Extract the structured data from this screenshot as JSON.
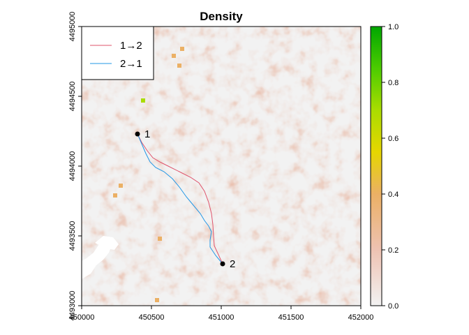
{
  "chart_data": {
    "type": "heatmap",
    "title": "Density",
    "xlabel": "",
    "ylabel": "",
    "xlim": [
      450000,
      452000
    ],
    "ylim": [
      4493000,
      4495000
    ],
    "x_ticks": [
      "450000",
      "450500",
      "451000",
      "451500",
      "452000"
    ],
    "x_tick_values": [
      450000,
      450500,
      451000,
      451500,
      452000
    ],
    "y_ticks": [
      "4493000",
      "4493500",
      "4494000",
      "4494500",
      "4495000"
    ],
    "y_tick_values": [
      4493000,
      4493500,
      4494000,
      4494500,
      4495000
    ],
    "colorbar": {
      "min": 0.0,
      "max": 1.0,
      "ticks": [
        "0.0",
        "0.2",
        "0.4",
        "0.6",
        "0.8",
        "1.0"
      ],
      "tick_values": [
        0,
        0.2,
        0.4,
        0.6,
        0.8,
        1.0
      ],
      "colors": [
        "#f2f2f2",
        "#eec2b2",
        "#ebb065",
        "#e6d600",
        "#aadc00",
        "#4ccc00",
        "#00a600"
      ]
    },
    "legend": {
      "placement": "top-left",
      "entries": [
        {
          "label": "1→2",
          "color": "#df536b"
        },
        {
          "label": "2→1",
          "color": "#2297e6"
        }
      ]
    },
    "points": [
      {
        "label": "1",
        "x": 450400,
        "y": 4494230
      },
      {
        "label": "2",
        "x": 451010,
        "y": 4493300
      }
    ],
    "series": [
      {
        "label": "1→2",
        "color": "#df536b",
        "x": [
          450400,
          450430,
          450470,
          450510,
          450560,
          450620,
          450700,
          450780,
          450840,
          450880,
          450910,
          450930,
          450940,
          450945,
          450950,
          451010
        ],
        "y": [
          4494230,
          4494170,
          4494110,
          4494060,
          4494030,
          4494000,
          4493960,
          4493920,
          4493880,
          4493820,
          4493740,
          4493660,
          4493580,
          4493500,
          4493430,
          4493300
        ]
      },
      {
        "label": "2→1",
        "color": "#2297e6",
        "x": [
          450400,
          450430,
          450460,
          450490,
          450530,
          450590,
          450650,
          450700,
          450750,
          450800,
          450850,
          450880,
          450910,
          450930,
          450920,
          450920,
          450960,
          451010
        ],
        "y": [
          4494230,
          4494160,
          4494090,
          4494030,
          4493990,
          4493960,
          4493910,
          4493850,
          4493780,
          4493720,
          4493660,
          4493610,
          4493570,
          4493530,
          4493470,
          4493420,
          4493360,
          4493300
        ]
      }
    ],
    "highlights": [
      {
        "x": 450660,
        "y": 4494790,
        "value": 0.35
      },
      {
        "x": 450700,
        "y": 4494720,
        "value": 0.3
      },
      {
        "x": 450720,
        "y": 4494840,
        "value": 0.32
      },
      {
        "x": 450240,
        "y": 4493790,
        "value": 0.35
      },
      {
        "x": 450280,
        "y": 4493860,
        "value": 0.3
      },
      {
        "x": 450560,
        "y": 4493480,
        "value": 0.3
      },
      {
        "x": 450540,
        "y": 4493040,
        "value": 0.25
      },
      {
        "x": 450440,
        "y": 4494470,
        "value": 0.7
      }
    ],
    "grid": false
  }
}
